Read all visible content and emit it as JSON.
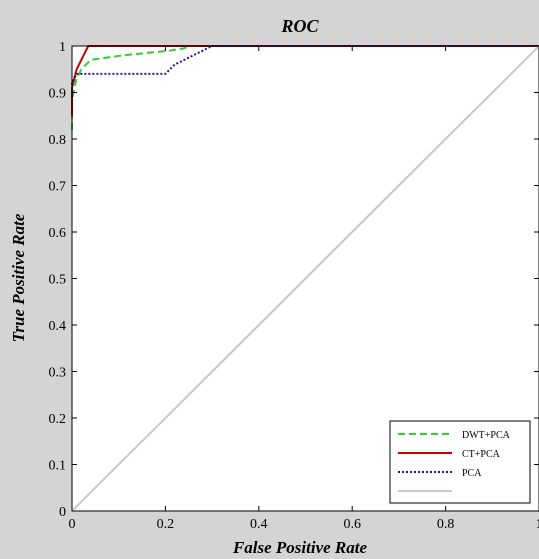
{
  "chart_data": {
    "type": "line",
    "title": "ROC",
    "xlabel": "False Positive Rate",
    "ylabel": "True Positive Rate",
    "xlim": [
      0,
      1
    ],
    "ylim": [
      0,
      1
    ],
    "xticks": [
      "0",
      "0.2",
      "0.4",
      "0.6",
      "0.8",
      "1"
    ],
    "yticks": [
      "0",
      "0.1",
      "0.2",
      "0.3",
      "0.4",
      "0.5",
      "0.6",
      "0.7",
      "0.8",
      "0.9",
      "1"
    ],
    "grid": false,
    "legend_position": "bottom-right",
    "series": [
      {
        "name": "DWT+PCA",
        "color": "#33cc33",
        "style": "dashed",
        "points": [
          [
            0,
            0.82
          ],
          [
            0,
            0.88
          ],
          [
            0.005,
            0.91
          ],
          [
            0.01,
            0.93
          ],
          [
            0.02,
            0.95
          ],
          [
            0.03,
            0.96
          ],
          [
            0.04,
            0.97
          ],
          [
            0.11,
            0.98
          ],
          [
            0.21,
            0.99
          ],
          [
            0.24,
            0.995
          ],
          [
            0.25,
            1
          ],
          [
            1,
            1
          ]
        ]
      },
      {
        "name": "CT+PCA",
        "color": "#cc0000",
        "style": "solid",
        "points": [
          [
            0,
            0.85
          ],
          [
            0,
            0.91
          ],
          [
            0.005,
            0.93
          ],
          [
            0.01,
            0.95
          ],
          [
            0.02,
            0.97
          ],
          [
            0.03,
            0.99
          ],
          [
            0.035,
            1
          ],
          [
            1,
            1
          ]
        ]
      },
      {
        "name": "PCA",
        "color": "#1a1a8c",
        "style": "dotted",
        "points": [
          [
            0,
            0.89
          ],
          [
            0,
            0.92
          ],
          [
            0.01,
            0.94
          ],
          [
            0.2,
            0.94
          ],
          [
            0.22,
            0.96
          ],
          [
            0.26,
            0.98
          ],
          [
            0.28,
            0.99
          ],
          [
            0.3,
            1
          ],
          [
            1,
            1
          ]
        ]
      },
      {
        "name": "",
        "color": "#c8c8c8",
        "style": "solid",
        "points": [
          [
            0,
            0
          ],
          [
            1,
            1
          ]
        ]
      }
    ]
  }
}
